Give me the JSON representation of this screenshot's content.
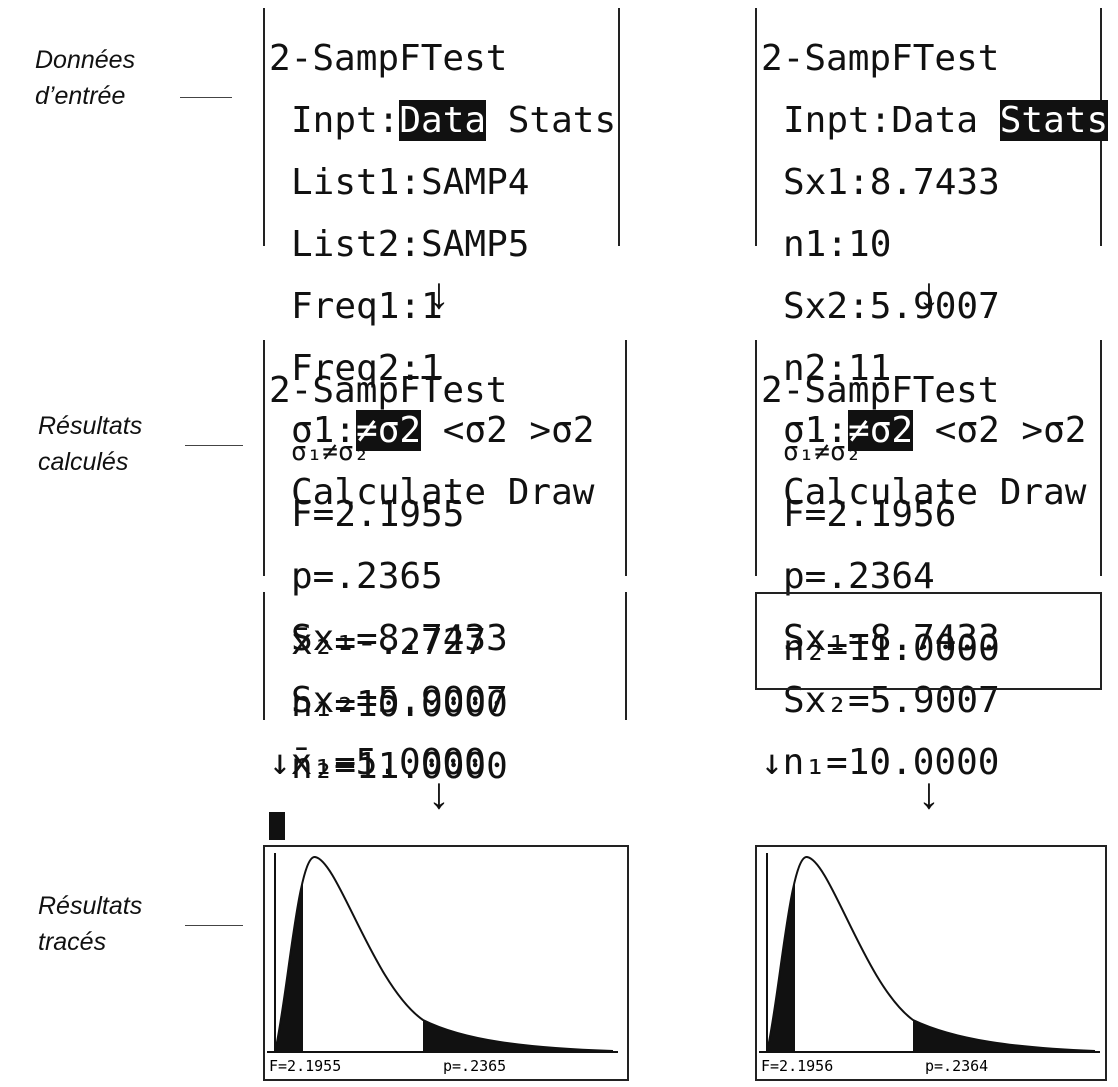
{
  "labels": [
    [
      "Données",
      "d’entrée"
    ],
    [
      "Résultats",
      "calculés"
    ],
    [
      "Résultats",
      "tracés"
    ]
  ],
  "input_data": [
    "2-SampFTest",
    [
      "Inpt:",
      "Data",
      " Stats"
    ],
    "List1:SAMP4",
    "List2:SAMP5",
    "Freq1:1",
    "Freq2:1",
    [
      "σ1:",
      "≠σ2",
      " <σ2 >σ2"
    ],
    "Calculate Draw"
  ],
  "input_stats": [
    "2-SampFTest",
    [
      "Inpt:Data ",
      "Stats"
    ],
    "Sx1:8.7433",
    "n1:10",
    "Sx2:5.9007",
    "n2:11",
    [
      "σ1:",
      "≠σ2",
      " <σ2 >σ2"
    ],
    "Calculate Draw"
  ],
  "results_data": [
    "2-SampFTest",
    "σ₁≠σ₂",
    "F=2.1955",
    "p=.2365",
    "Sx₁=8.7433",
    "Sx₂=5.9007",
    "↓x̄₁=5.0000"
  ],
  "results_data_more": [
    "x̄₂=-.2727",
    "n₁=10.0000",
    "n₂=11.0000"
  ],
  "results_stats": [
    "2-SampFTest",
    "σ₁≠σ₂",
    "F=2.1956",
    "p=.2364",
    "Sx₁=8.7433",
    "Sx₂=5.9007",
    "↓n₁=10.0000"
  ],
  "results_stats_more": [
    "n₂=11.0000"
  ],
  "graph_data": [
    "F=2.1955",
    "p=.2365"
  ],
  "graph_stats": [
    "F=2.1956",
    "p=.2364"
  ]
}
